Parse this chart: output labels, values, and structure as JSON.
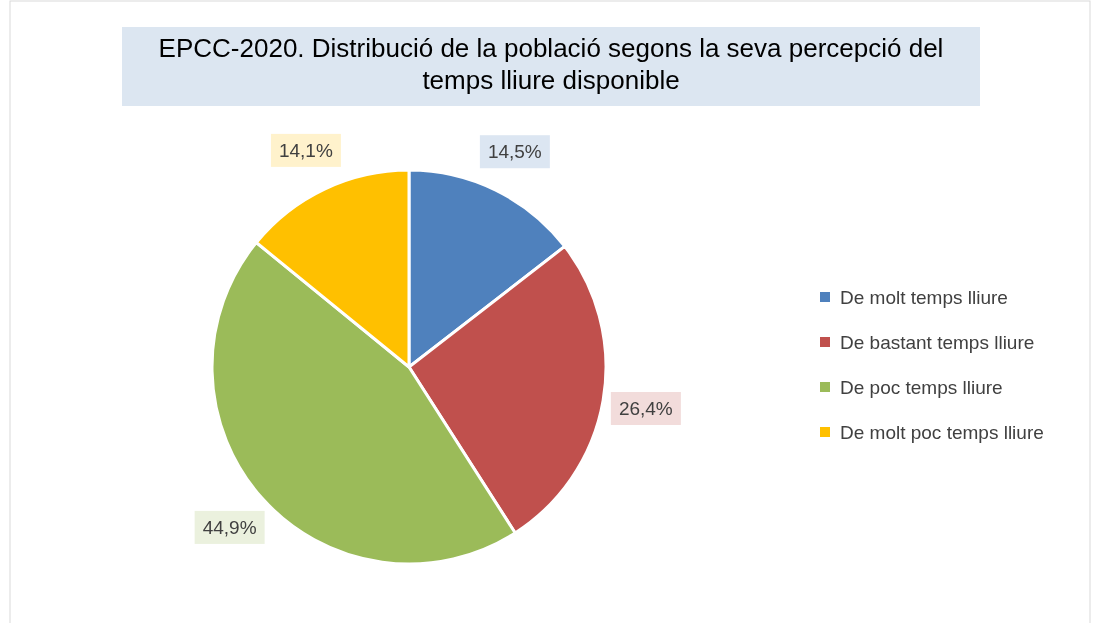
{
  "chart_data": {
    "type": "pie",
    "title": "EPCC-2020. Distribució de la població segons la seva percepció del temps lliure disponible",
    "categories": [
      "De molt temps lliure",
      "De bastant temps lliure",
      "De poc temps lliure",
      "De molt poc temps lliure"
    ],
    "values": [
      14.5,
      26.4,
      44.9,
      14.1
    ],
    "colors": [
      "#4f81bd",
      "#c0504d",
      "#9bbb59",
      "#ffc000"
    ],
    "value_labels": [
      "14,5%",
      "26,4%",
      "44,9%",
      "14,1%"
    ],
    "legend": "right"
  }
}
